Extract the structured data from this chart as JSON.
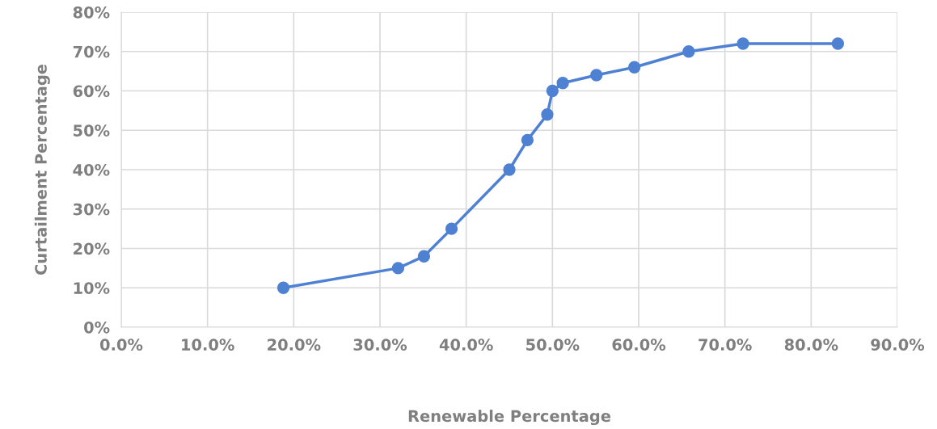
{
  "chart_data": {
    "type": "line",
    "xlabel": "Renewable Percentage",
    "ylabel": "Curtailment Percentage",
    "series": [
      {
        "color": "#4f81d3",
        "x": [
          18.8,
          32.1,
          35.1,
          38.3,
          45.0,
          47.1,
          49.4,
          50.0,
          51.2,
          55.1,
          59.5,
          65.8,
          72.1,
          83.1
        ],
        "values": [
          10,
          15,
          18,
          25,
          40,
          47.5,
          54,
          60,
          62,
          64,
          66,
          70,
          72,
          72
        ]
      }
    ],
    "xlim": [
      0,
      90
    ],
    "xticks": [
      {
        "value": 0,
        "label": "0.0%"
      },
      {
        "value": 10,
        "label": "10.0%"
      },
      {
        "value": 20,
        "label": "20.0%"
      },
      {
        "value": 30,
        "label": "30.0%"
      },
      {
        "value": 40,
        "label": "40.0%"
      },
      {
        "value": 50,
        "label": "50.0%"
      },
      {
        "value": 60,
        "label": "60.0%"
      },
      {
        "value": 70,
        "label": "70.0%"
      },
      {
        "value": 80,
        "label": "80.0%"
      },
      {
        "value": 90,
        "label": "90.0%"
      }
    ],
    "ylim": [
      0,
      80
    ],
    "yticks": [
      {
        "value": 0,
        "label": "0%"
      },
      {
        "value": 10,
        "label": "10%"
      },
      {
        "value": 20,
        "label": "20%"
      },
      {
        "value": 30,
        "label": "30%"
      },
      {
        "value": 40,
        "label": "40%"
      },
      {
        "value": 50,
        "label": "50%"
      },
      {
        "value": 60,
        "label": "60%"
      },
      {
        "value": 70,
        "label": "70%"
      },
      {
        "value": 80,
        "label": "80%"
      }
    ],
    "grid": true,
    "marker": "circle",
    "line_style": "solid"
  }
}
